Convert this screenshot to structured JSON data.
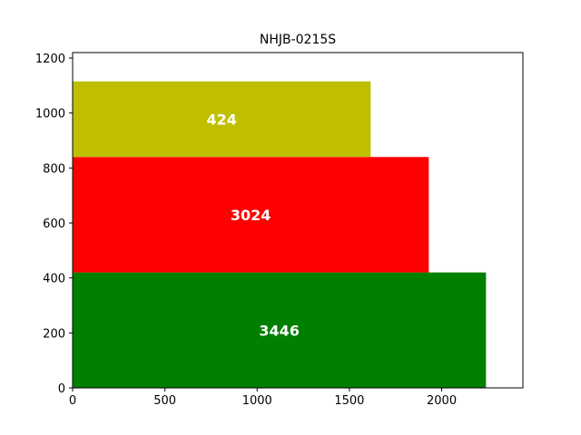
{
  "chart_data": {
    "type": "bar",
    "title": "NHJB-0215S",
    "orientation": "horizontal-stacked-blocks",
    "xlabel": "",
    "ylabel": "",
    "xlim": [
      0,
      2440
    ],
    "ylim": [
      0,
      1220
    ],
    "xticks": [
      0,
      500,
      1000,
      1500,
      2000
    ],
    "yticks": [
      0,
      200,
      400,
      600,
      800,
      1000,
      1200
    ],
    "grid": false,
    "legend": "none",
    "series": [
      {
        "label": "3446",
        "y_start": 0,
        "y_end": 420,
        "x_end": 2240,
        "color": "#008000"
      },
      {
        "label": "3024",
        "y_start": 420,
        "y_end": 840,
        "x_end": 1930,
        "color": "#ff0000"
      },
      {
        "label": "424",
        "y_start": 840,
        "y_end": 1115,
        "x_end": 1615,
        "color": "#bfbf00"
      }
    ]
  }
}
